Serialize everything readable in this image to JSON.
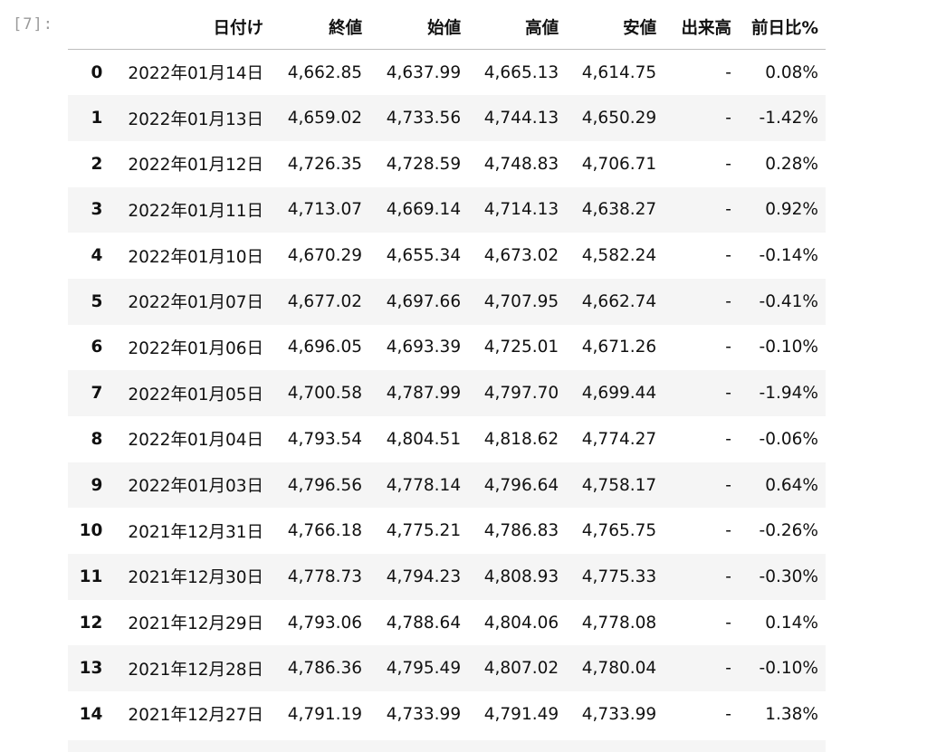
{
  "prompt": "[7]:",
  "table": {
    "columns": [
      "",
      "日付け",
      "終値",
      "始値",
      "高値",
      "安値",
      "出来高",
      "前日比%"
    ],
    "rows": [
      {
        "index": "0",
        "date": "2022年01月14日",
        "close": "4,662.85",
        "open": "4,637.99",
        "high": "4,665.13",
        "low": "4,614.75",
        "volume": "-",
        "change": "0.08%"
      },
      {
        "index": "1",
        "date": "2022年01月13日",
        "close": "4,659.02",
        "open": "4,733.56",
        "high": "4,744.13",
        "low": "4,650.29",
        "volume": "-",
        "change": "-1.42%"
      },
      {
        "index": "2",
        "date": "2022年01月12日",
        "close": "4,726.35",
        "open": "4,728.59",
        "high": "4,748.83",
        "low": "4,706.71",
        "volume": "-",
        "change": "0.28%"
      },
      {
        "index": "3",
        "date": "2022年01月11日",
        "close": "4,713.07",
        "open": "4,669.14",
        "high": "4,714.13",
        "low": "4,638.27",
        "volume": "-",
        "change": "0.92%"
      },
      {
        "index": "4",
        "date": "2022年01月10日",
        "close": "4,670.29",
        "open": "4,655.34",
        "high": "4,673.02",
        "low": "4,582.24",
        "volume": "-",
        "change": "-0.14%"
      },
      {
        "index": "5",
        "date": "2022年01月07日",
        "close": "4,677.02",
        "open": "4,697.66",
        "high": "4,707.95",
        "low": "4,662.74",
        "volume": "-",
        "change": "-0.41%"
      },
      {
        "index": "6",
        "date": "2022年01月06日",
        "close": "4,696.05",
        "open": "4,693.39",
        "high": "4,725.01",
        "low": "4,671.26",
        "volume": "-",
        "change": "-0.10%"
      },
      {
        "index": "7",
        "date": "2022年01月05日",
        "close": "4,700.58",
        "open": "4,787.99",
        "high": "4,797.70",
        "low": "4,699.44",
        "volume": "-",
        "change": "-1.94%"
      },
      {
        "index": "8",
        "date": "2022年01月04日",
        "close": "4,793.54",
        "open": "4,804.51",
        "high": "4,818.62",
        "low": "4,774.27",
        "volume": "-",
        "change": "-0.06%"
      },
      {
        "index": "9",
        "date": "2022年01月03日",
        "close": "4,796.56",
        "open": "4,778.14",
        "high": "4,796.64",
        "low": "4,758.17",
        "volume": "-",
        "change": "0.64%"
      },
      {
        "index": "10",
        "date": "2021年12月31日",
        "close": "4,766.18",
        "open": "4,775.21",
        "high": "4,786.83",
        "low": "4,765.75",
        "volume": "-",
        "change": "-0.26%"
      },
      {
        "index": "11",
        "date": "2021年12月30日",
        "close": "4,778.73",
        "open": "4,794.23",
        "high": "4,808.93",
        "low": "4,775.33",
        "volume": "-",
        "change": "-0.30%"
      },
      {
        "index": "12",
        "date": "2021年12月29日",
        "close": "4,793.06",
        "open": "4,788.64",
        "high": "4,804.06",
        "low": "4,778.08",
        "volume": "-",
        "change": "0.14%"
      },
      {
        "index": "13",
        "date": "2021年12月28日",
        "close": "4,786.36",
        "open": "4,795.49",
        "high": "4,807.02",
        "low": "4,780.04",
        "volume": "-",
        "change": "-0.10%"
      },
      {
        "index": "14",
        "date": "2021年12月27日",
        "close": "4,791.19",
        "open": "4,733.99",
        "high": "4,791.49",
        "low": "4,733.99",
        "volume": "-",
        "change": "1.38%"
      }
    ]
  }
}
